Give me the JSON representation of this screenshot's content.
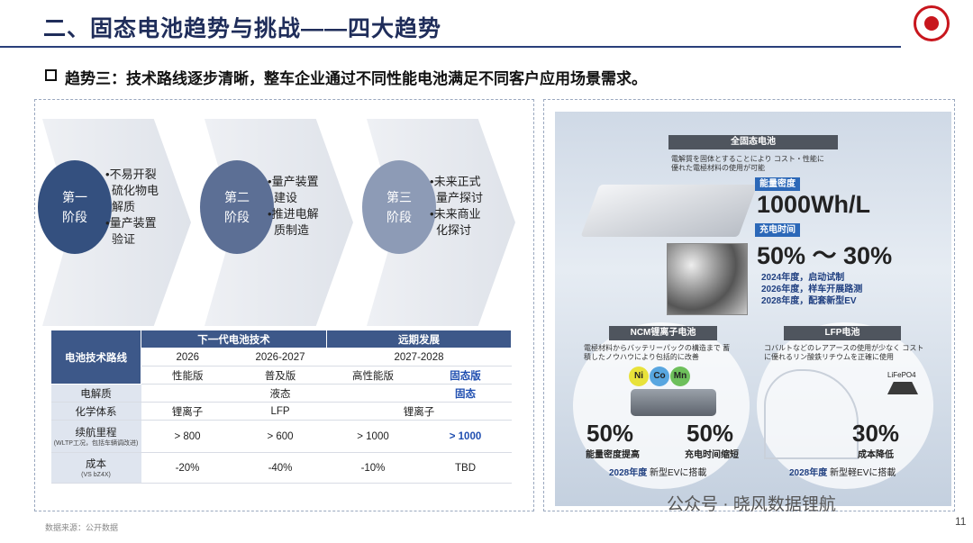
{
  "header": {
    "title": "二、固态电池趋势与挑战——四大趋势",
    "subtitle": "趋势三：技术路线逐步清晰，整车企业通过不同性能电池满足不同客户应用场景需求。"
  },
  "stages": [
    {
      "label": [
        "第一",
        "阶段"
      ],
      "bullets": [
        "不易开裂硫化物电解质",
        "量产装置验证"
      ]
    },
    {
      "label": [
        "第二",
        "阶段"
      ],
      "bullets": [
        "量产装置建设",
        "推进电解质制造"
      ]
    },
    {
      "label": [
        "第三",
        "阶段"
      ],
      "bullets": [
        "未来正式量产探讨",
        "未来商业化探讨"
      ]
    }
  ],
  "table": {
    "corner": "电池技术路线",
    "groups": [
      "下一代电池技术",
      "远期发展"
    ],
    "years": [
      "2026",
      "2026-2027",
      "2027-2028"
    ],
    "versions": [
      "性能版",
      "普及版",
      "高性能版",
      "固态版"
    ],
    "rows": [
      {
        "label": "电解质",
        "cells": [
          "液态",
          "固态"
        ]
      },
      {
        "label": "化学体系",
        "cells": [
          "锂离子",
          "LFP",
          "锂离子"
        ]
      },
      {
        "label": "续航里程",
        "note": "(WLTP工况，包括车辆调改进)",
        "cells": [
          "> 800",
          "> 600",
          "> 1000",
          "> 1000"
        ]
      },
      {
        "label": "成本",
        "note": "(VS bZ4X)",
        "cells": [
          "-20%",
          "-40%",
          "-10%",
          "TBD"
        ]
      }
    ]
  },
  "panel": {
    "solid": {
      "title": "全固态电池",
      "desc": "電解質を固体とすることにより コスト・性能に優れた電極材料の使用が可能",
      "density_label": "能量密度",
      "density": "1000Wh/L",
      "charge_label": "充电时间",
      "charge": "50% ～ 30%",
      "timeline": [
        "2024年度，启动试制",
        "2026年度，样车开展路测",
        "2028年度，配套新型EV"
      ]
    },
    "ncm": {
      "title": "NCM锂离子电池",
      "desc": "電極材料からバッテリーパックの構造まで 蓄積したノウハウにより包括的に改善",
      "elements": [
        "Ni",
        "Co",
        "Mn"
      ],
      "stats": [
        {
          "value": "50%",
          "label": "能量密度提高"
        },
        {
          "value": "50%",
          "label": "充电时间缩短"
        }
      ],
      "year": "2028年度",
      "note": "新型EVに搭載"
    },
    "lfp": {
      "title": "LFP电池",
      "desc": "コバルトなどのレアアースの使用が少なく コストに優れるリン酸鉄リチウムを正確に使用",
      "chem": "LiFePO4",
      "stat": {
        "value": "30%",
        "label": "成本降低"
      },
      "year": "2028年度",
      "note": "新型軽EVに搭載"
    }
  },
  "footer": {
    "source": "数据来源：公开数据",
    "watermark": "公众号 · 晓风数据锂航",
    "page": "11"
  }
}
